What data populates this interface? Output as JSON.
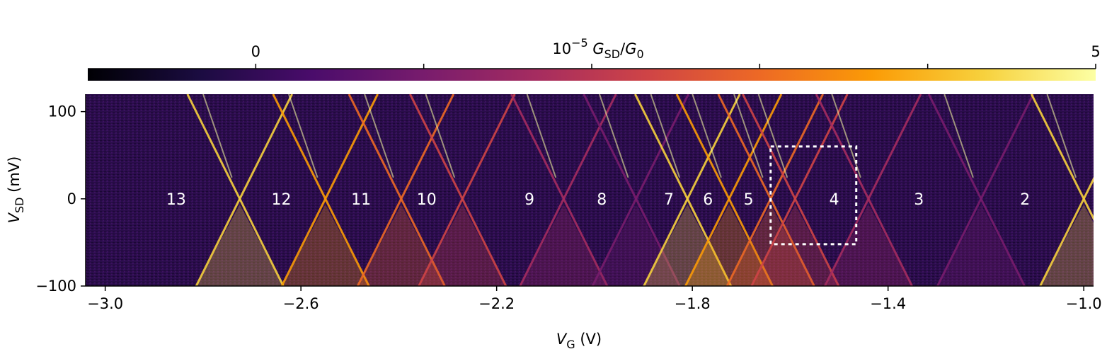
{
  "chart_data": {
    "type": "heatmap",
    "colorbar": {
      "label_base": "10",
      "label_exp": "−5",
      "label_g": "G",
      "label_g_sub": "SD",
      "label_slash": "/",
      "label_g0": "G",
      "label_g0_sub": "0",
      "range": [
        -1,
        5
      ],
      "ticks": [
        {
          "value": 0,
          "label": "0"
        },
        {
          "value": 1,
          "label": ""
        },
        {
          "value": 2,
          "label": ""
        },
        {
          "value": 3,
          "label": ""
        },
        {
          "value": 4,
          "label": ""
        },
        {
          "value": 5,
          "label": "5"
        }
      ],
      "colormap": "inferno",
      "colors": [
        "#000004",
        "#1b0c41",
        "#4a0c6b",
        "#781c6d",
        "#a52c60",
        "#cf4446",
        "#ed6925",
        "#fb9b06",
        "#f7d13d",
        "#fcffa4"
      ]
    },
    "x_axis": {
      "label_v": "V",
      "label_sub": "G",
      "label_unit": " (V)",
      "range": [
        -3.04,
        -0.98
      ],
      "ticks": [
        {
          "value": -3.0,
          "label": "−3.0"
        },
        {
          "value": -2.6,
          "label": "−2.6"
        },
        {
          "value": -2.2,
          "label": "−2.2"
        },
        {
          "value": -1.8,
          "label": "−1.8"
        },
        {
          "value": -1.4,
          "label": "−1.4"
        },
        {
          "value": -1.0,
          "label": "−1.0"
        }
      ]
    },
    "y_axis": {
      "label_v": "V",
      "label_sub": "SD",
      "label_unit": " (mV)",
      "range": [
        -100,
        120
      ],
      "ticks": [
        {
          "value": 100,
          "label": "100"
        },
        {
          "value": 0,
          "label": "0"
        },
        {
          "value": -100,
          "label": "−100"
        }
      ]
    },
    "coulomb_diamonds": [
      {
        "label": "13",
        "x": -2.855
      },
      {
        "label": "12",
        "x": -2.64
      },
      {
        "label": "11",
        "x": -2.477
      },
      {
        "label": "10",
        "x": -2.343
      },
      {
        "label": "9",
        "x": -2.133
      },
      {
        "label": "8",
        "x": -1.985
      },
      {
        "label": "7",
        "x": -1.848
      },
      {
        "label": "6",
        "x": -1.768
      },
      {
        "label": "5",
        "x": -1.685
      },
      {
        "label": "4",
        "x": -1.51
      },
      {
        "label": "3",
        "x": -1.337
      },
      {
        "label": "2",
        "x": -1.12
      }
    ],
    "crossings": [
      -2.725,
      -2.55,
      -2.395,
      -2.27,
      -2.063,
      -1.915,
      -1.81,
      -1.725,
      -1.64,
      -1.59,
      -1.44,
      -1.21,
      -1.0
    ],
    "highlight_box": {
      "x": [
        -1.64,
        -1.465
      ],
      "y": [
        -52,
        60
      ]
    }
  }
}
